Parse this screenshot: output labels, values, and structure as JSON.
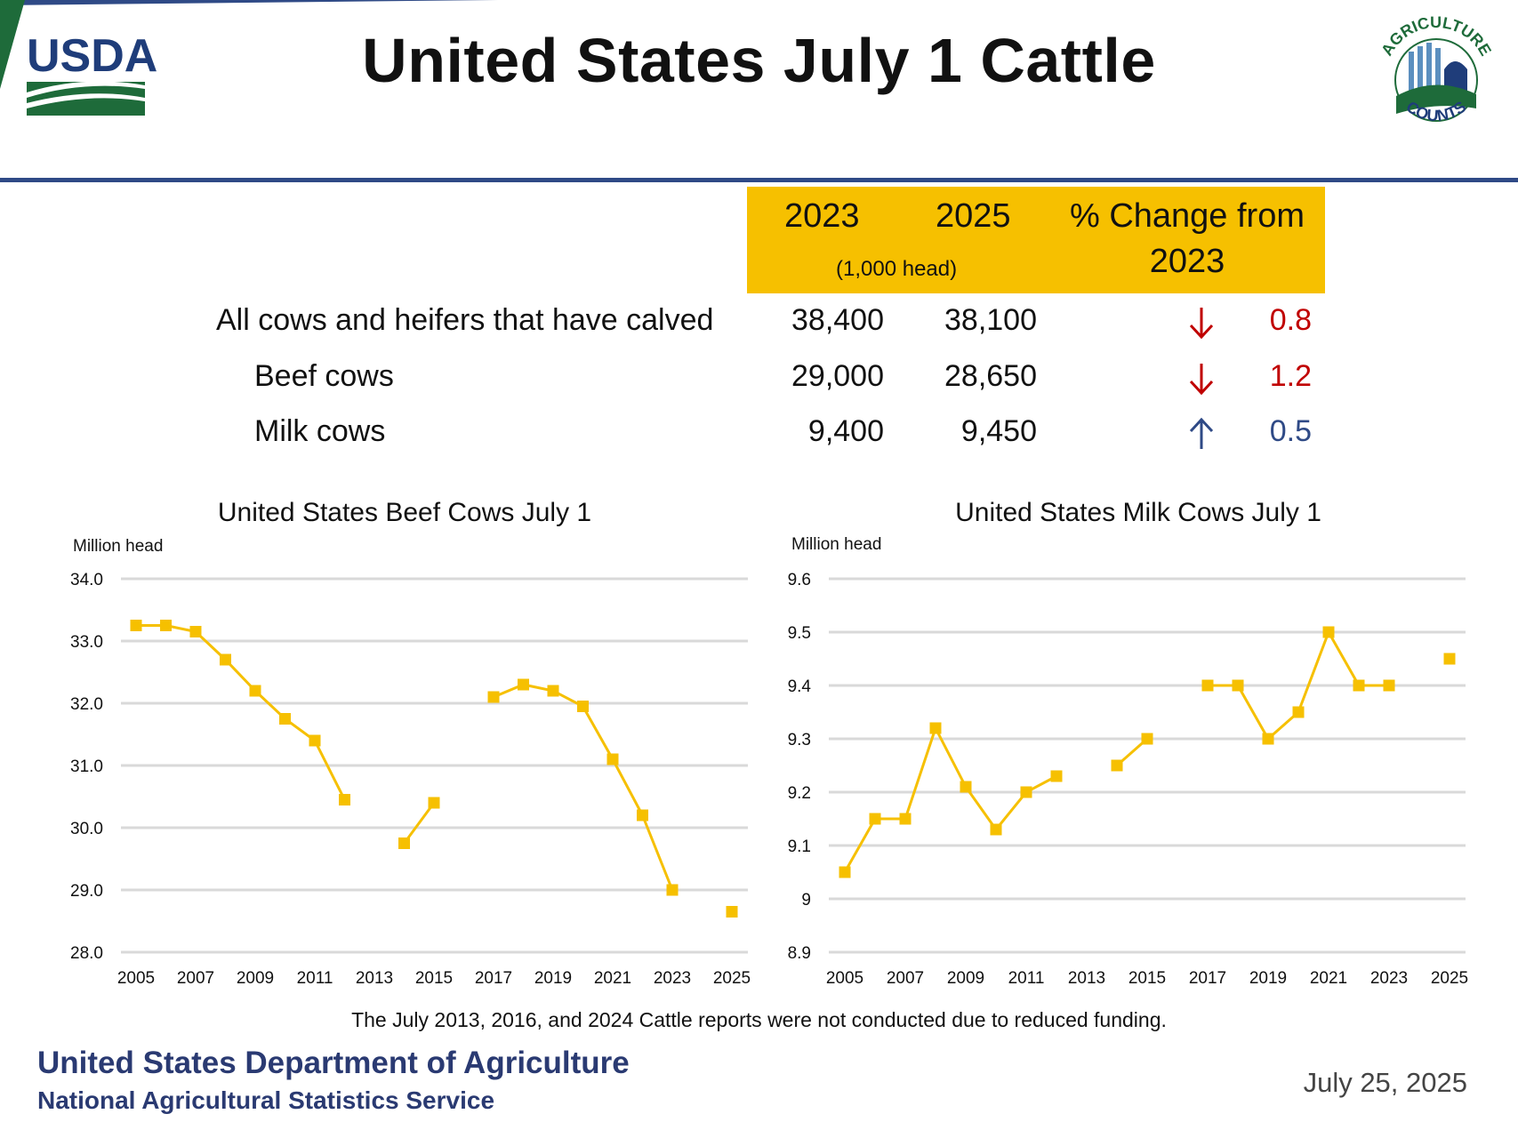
{
  "title": "United States July 1 Cattle",
  "logos": {
    "usda_text": "USDA",
    "ag_counts_top": "AGRICULTURE",
    "ag_counts_bottom": "COUNTS"
  },
  "table": {
    "headers": {
      "y1": "2023",
      "y2": "2025",
      "pct_line1": "% Change from",
      "pct_line2": "2023",
      "unit": "(1,000 head)"
    },
    "rows": [
      {
        "label": "All cows and heifers that have calved",
        "v2023": "38,400",
        "v2025": "38,100",
        "dir": "down",
        "pct": "0.8"
      },
      {
        "label": "Beef cows",
        "v2023": "29,000",
        "v2025": "28,650",
        "dir": "down",
        "pct": "1.2"
      },
      {
        "label": "Milk cows",
        "v2023": "9,400",
        "v2025": "9,450",
        "dir": "up",
        "pct": "0.5"
      }
    ]
  },
  "colors": {
    "header_fill": "#f6c000",
    "series": "#f6c000",
    "down": "#c00000",
    "up": "#2f4a86",
    "grid": "#d9d9d9",
    "rule": "#2f4a86"
  },
  "chart_data": [
    {
      "type": "line",
      "title": "United States Beef Cows July 1",
      "ylabel": "Million head",
      "ylim": [
        28.0,
        34.0
      ],
      "yticks": [
        "34.0",
        "33.0",
        "32.0",
        "31.0",
        "30.0",
        "29.0",
        "28.0"
      ],
      "xticks": [
        "2005",
        "2007",
        "2009",
        "2011",
        "2013",
        "2015",
        "2017",
        "2019",
        "2021",
        "2023",
        "2025"
      ],
      "x": [
        2005,
        2006,
        2007,
        2008,
        2009,
        2010,
        2011,
        2012,
        2013,
        2014,
        2015,
        2016,
        2017,
        2018,
        2019,
        2020,
        2021,
        2022,
        2023,
        2024,
        2025
      ],
      "values": [
        33.25,
        33.25,
        33.15,
        32.7,
        32.2,
        31.75,
        31.4,
        30.45,
        null,
        29.75,
        30.4,
        null,
        32.1,
        32.3,
        32.2,
        31.95,
        31.1,
        30.2,
        29.0,
        null,
        28.65
      ],
      "grid": true
    },
    {
      "type": "line",
      "title": "United States Milk Cows July 1",
      "ylabel": "Million head",
      "ylim": [
        8.9,
        9.6
      ],
      "yticks": [
        "9.6",
        "9.5",
        "9.4",
        "9.3",
        "9.2",
        "9.1",
        "9",
        "8.9"
      ],
      "xticks": [
        "2005",
        "2007",
        "2009",
        "2011",
        "2013",
        "2015",
        "2017",
        "2019",
        "2021",
        "2023",
        "2025"
      ],
      "x": [
        2005,
        2006,
        2007,
        2008,
        2009,
        2010,
        2011,
        2012,
        2013,
        2014,
        2015,
        2016,
        2017,
        2018,
        2019,
        2020,
        2021,
        2022,
        2023,
        2024,
        2025
      ],
      "values": [
        9.05,
        9.15,
        9.15,
        9.32,
        9.21,
        9.13,
        9.2,
        9.23,
        null,
        9.25,
        9.3,
        null,
        9.4,
        9.4,
        9.3,
        9.35,
        9.5,
        9.4,
        9.4,
        null,
        9.45
      ],
      "grid": true
    }
  ],
  "note": "The July 2013, 2016, and 2024 Cattle reports were not conducted due to reduced funding.",
  "footer": {
    "dept": "United States Department of Agriculture",
    "agency": "National Agricultural Statistics Service",
    "date": "July 25, 2025"
  }
}
